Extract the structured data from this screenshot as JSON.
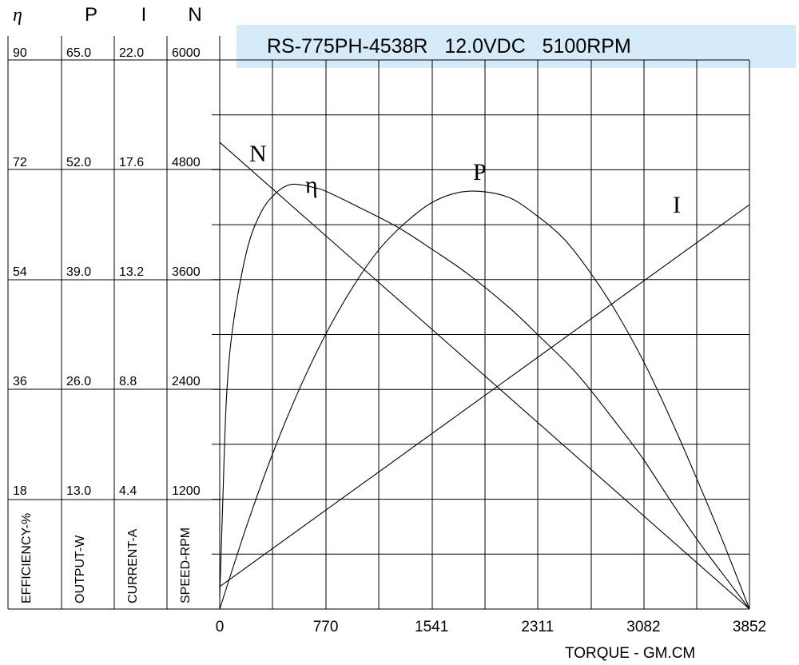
{
  "chart_data": {
    "type": "line",
    "title": "RS-775PH-4538R   12.0VDC   5100RPM",
    "xlabel": "TORQUE - GM.CM",
    "x_ticks": [
      "0",
      "770",
      "1541",
      "2311",
      "3082",
      "3852"
    ],
    "xlim": [
      0,
      3852
    ],
    "grid": true,
    "axes": [
      {
        "symbol": "η",
        "label": "EFFICIENCY-%",
        "ticks": [
          "90",
          "72",
          "54",
          "36",
          "18"
        ],
        "range": [
          0,
          90
        ]
      },
      {
        "symbol": "P",
        "label": "OUTPUT-W",
        "ticks": [
          "65.0",
          "52.0",
          "39.0",
          "26.0",
          "13.0"
        ],
        "range": [
          0,
          65
        ]
      },
      {
        "symbol": "I",
        "label": "CURRENT-A",
        "ticks": [
          "22.0",
          "17.6",
          "13.2",
          "8.8",
          "4.4"
        ],
        "range": [
          0,
          22
        ]
      },
      {
        "symbol": "N",
        "label": "SPEED-RPM",
        "ticks": [
          "6000",
          "4800",
          "3600",
          "2400",
          "1200"
        ],
        "range": [
          0,
          6000
        ]
      }
    ],
    "series": [
      {
        "name": "N",
        "axis": 3,
        "color": "#000000",
        "x": [
          0,
          3852
        ],
        "y": [
          5100,
          0
        ]
      },
      {
        "name": "I",
        "axis": 2,
        "color": "#000000",
        "x": [
          0,
          3852
        ],
        "y": [
          0.9,
          16.2
        ]
      },
      {
        "name": "P",
        "axis": 1,
        "color": "#000000",
        "x": [
          0,
          193,
          385,
          578,
          770,
          963,
          1156,
          1348,
          1541,
          1733,
          1926,
          2119,
          2311,
          2504,
          2696,
          2889,
          3082,
          3274,
          3467,
          3659,
          3852
        ],
        "y": [
          0,
          9.7,
          18.4,
          26.0,
          32.5,
          38.0,
          42.5,
          45.7,
          48.1,
          49.3,
          49.4,
          48.6,
          46.5,
          43.8,
          39.8,
          35.0,
          29.3,
          22.7,
          15.5,
          8.0,
          0
        ]
      },
      {
        "name": "η",
        "axis": 0,
        "color": "#000000",
        "x": [
          0,
          20,
          50,
          100,
          200,
          300,
          400,
          500,
          600,
          700,
          770,
          1000,
          1300,
          1541,
          1800,
          2100,
          2311,
          2600,
          2900,
          3082,
          3300,
          3500,
          3700,
          3852
        ],
        "y": [
          2,
          16,
          35,
          47,
          59,
          65,
          68,
          69.5,
          69.5,
          69,
          68.5,
          66,
          62.5,
          59,
          55,
          49.5,
          45,
          38.5,
          30,
          24.5,
          17,
          10.5,
          4.5,
          0
        ]
      }
    ],
    "annotations": [
      "N",
      "η",
      "P",
      "I"
    ]
  }
}
